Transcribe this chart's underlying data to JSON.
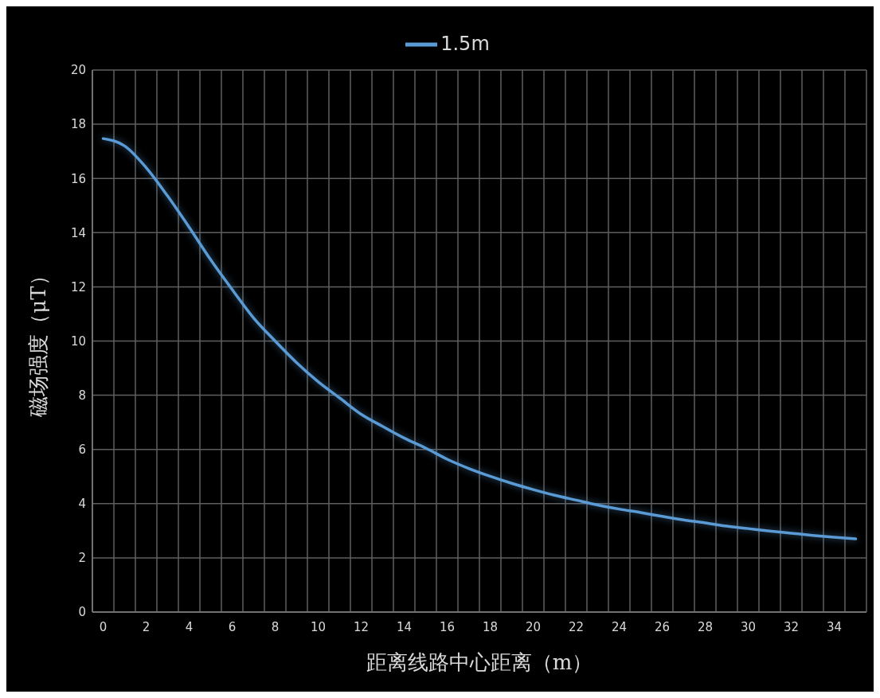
{
  "chart_data": {
    "type": "line",
    "xlabel": "距离线路中心距离（m）",
    "ylabel": "磁场强度（μT）",
    "x": [
      0,
      1,
      2,
      3,
      4,
      5,
      6,
      7,
      8,
      9,
      10,
      11,
      12,
      13,
      14,
      15,
      16,
      17,
      18,
      19,
      20,
      21,
      22,
      23,
      24,
      25,
      26,
      27,
      28,
      29,
      30,
      31,
      32,
      33,
      34,
      35
    ],
    "series": [
      {
        "name": "1.5m",
        "color": "#5b9bd5",
        "values": [
          17.47,
          17.2,
          16.4,
          15.35,
          14.2,
          13.0,
          11.9,
          10.85,
          10.0,
          9.2,
          8.5,
          7.9,
          7.3,
          6.85,
          6.42,
          6.05,
          5.64,
          5.3,
          5.01,
          4.75,
          4.52,
          4.31,
          4.13,
          3.95,
          3.8,
          3.67,
          3.53,
          3.4,
          3.29,
          3.17,
          3.08,
          2.99,
          2.91,
          2.83,
          2.76,
          2.7
        ]
      }
    ],
    "xlim": [
      -0.5,
      35.5
    ],
    "xticks": [
      {
        "value": -0.5,
        "label": null
      },
      0,
      {
        "value": 0.5,
        "label": null
      },
      {
        "value": 1.5,
        "label": null
      },
      2,
      {
        "value": 2.5,
        "label": null
      },
      {
        "value": 3.5,
        "label": null
      },
      4,
      {
        "value": 4.5,
        "label": null
      },
      {
        "value": 5.5,
        "label": null
      },
      6,
      {
        "value": 6.5,
        "label": null
      },
      {
        "value": 7.5,
        "label": null
      },
      8,
      {
        "value": 8.5,
        "label": null
      },
      {
        "value": 9.5,
        "label": null
      },
      10,
      {
        "value": 10.5,
        "label": null
      },
      {
        "value": 11.5,
        "label": null
      },
      12,
      {
        "value": 12.5,
        "label": null
      },
      {
        "value": 13.5,
        "label": null
      },
      14,
      {
        "value": 14.5,
        "label": null
      },
      {
        "value": 15.5,
        "label": null
      },
      16,
      {
        "value": 16.5,
        "label": null
      },
      {
        "value": 17.5,
        "label": null
      },
      18,
      {
        "value": 18.5,
        "label": null
      },
      {
        "value": 19.5,
        "label": null
      },
      20,
      {
        "value": 20.5,
        "label": null
      },
      {
        "value": 21.5,
        "label": null
      },
      22,
      {
        "value": 22.5,
        "label": null
      },
      {
        "value": 23.5,
        "label": null
      },
      24,
      {
        "value": 24.5,
        "label": null
      },
      {
        "value": 25.5,
        "label": null
      },
      26,
      {
        "value": 26.5,
        "label": null
      },
      {
        "value": 27.5,
        "label": null
      },
      28,
      {
        "value": 28.5,
        "label": null
      },
      {
        "value": 29.5,
        "label": null
      },
      30,
      {
        "value": 30.5,
        "label": null
      },
      {
        "value": 31.5,
        "label": null
      },
      32,
      {
        "value": 32.5,
        "label": null
      },
      {
        "value": 33.5,
        "label": null
      },
      34,
      {
        "value": 34.5,
        "label": null
      },
      {
        "value": 35.5,
        "label": null
      }
    ],
    "ylim": [
      0,
      20
    ],
    "yticks": [
      0,
      2,
      4,
      6,
      8,
      10,
      12,
      14,
      16,
      18,
      20
    ],
    "grid": true,
    "legend": "top",
    "marker": "none",
    "line_style": "solid"
  }
}
